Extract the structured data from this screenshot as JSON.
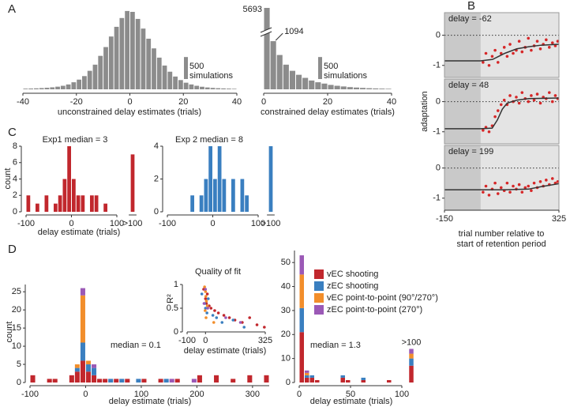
{
  "chart_data": [
    {
      "type": "histogram",
      "panel": "A",
      "xlabel": "unconstrained delay estimates (trials)",
      "bins": [
        -40,
        -38,
        -36,
        -34,
        -32,
        -30,
        -28,
        -26,
        -24,
        -22,
        -20,
        -18,
        -16,
        -14,
        -12,
        -10,
        -8,
        -6,
        -4,
        -2,
        0,
        2,
        4,
        6,
        8,
        10,
        12,
        14,
        16,
        18,
        20,
        22,
        24,
        26,
        28,
        30,
        32,
        34,
        36,
        38,
        40
      ],
      "values": [
        15,
        18,
        22,
        28,
        35,
        45,
        60,
        80,
        110,
        160,
        220,
        300,
        420,
        560,
        760,
        960,
        1200,
        1420,
        1620,
        1780,
        1760,
        1600,
        1380,
        1150,
        930,
        720,
        540,
        400,
        290,
        210,
        150,
        110,
        80,
        58,
        42,
        32,
        25,
        20,
        16,
        12
      ],
      "color": "#8c8c8c",
      "xlim": [
        -40,
        40
      ],
      "xticks": [
        -40,
        -20,
        0,
        20,
        40
      ],
      "ylim": [
        0,
        1850
      ],
      "scale_bar": 500,
      "scale_bar_label": "simulations"
    },
    {
      "type": "histogram",
      "xlabel": "constrained delay estimates (trials)",
      "bins": [
        0,
        2,
        4,
        6,
        8,
        10,
        12,
        14,
        16,
        18,
        20,
        22,
        24,
        26,
        28,
        30,
        32,
        34,
        36,
        38,
        40
      ],
      "values": [
        5693,
        1094,
        780,
        560,
        420,
        330,
        260,
        200,
        160,
        130,
        100,
        80,
        65,
        50,
        40,
        32,
        25,
        20,
        16,
        12
      ],
      "labeled_bars": [
        0,
        1
      ],
      "axis_break": true,
      "color": "#8c8c8c",
      "xlim": [
        0,
        40
      ],
      "xticks": [
        0,
        20,
        40
      ],
      "ylim": [
        0,
        1850
      ],
      "scale_bar": 500,
      "scale_bar_label": "simulations"
    },
    {
      "type": "scatter",
      "panel": "B",
      "title": "delay = -62",
      "retention_start": 0,
      "reference_line": 0,
      "x": [
        10,
        22,
        35,
        48,
        60,
        72,
        85,
        98,
        110,
        122,
        135,
        148,
        160,
        172,
        185,
        198,
        210,
        222,
        235,
        248,
        260,
        272,
        285,
        298,
        310,
        320
      ],
      "y": [
        -0.9,
        -0.6,
        -1.0,
        -0.7,
        -0.5,
        -0.9,
        -0.6,
        -0.4,
        -0.7,
        -0.3,
        -0.6,
        -0.5,
        -0.2,
        -0.55,
        -0.4,
        -0.1,
        -0.5,
        -0.35,
        -0.2,
        -0.45,
        -0.3,
        -0.15,
        -0.4,
        -0.25,
        -0.35,
        -0.2
      ],
      "color": "#d62728",
      "fit": {
        "x": [
          -150,
          0,
          50,
          100,
          150,
          200,
          250,
          325
        ],
        "y": [
          -0.85,
          -0.85,
          -0.8,
          -0.6,
          -0.45,
          -0.38,
          -0.33,
          -0.3
        ]
      },
      "fit_color": "#333333",
      "xlim": [
        -150,
        325
      ],
      "ylim": [
        -1.4,
        0.75
      ],
      "yticks": [
        -1,
        0
      ]
    },
    {
      "type": "scatter",
      "title": "delay = 48",
      "ylabel": "adaptation",
      "retention_start": 0,
      "reference_line": 0,
      "x": [
        10,
        22,
        35,
        48,
        60,
        72,
        85,
        98,
        110,
        122,
        135,
        148,
        160,
        172,
        185,
        198,
        210,
        222,
        235,
        248,
        260,
        272,
        285,
        298,
        310,
        320
      ],
      "y": [
        -0.95,
        -0.85,
        -1.0,
        -0.8,
        -0.5,
        -0.3,
        -0.1,
        0.05,
        -0.1,
        0.2,
        0.0,
        0.15,
        -0.05,
        0.3,
        0.1,
        0.0,
        0.2,
        0.05,
        0.25,
        -0.05,
        0.15,
        0.1,
        0.3,
        0.0,
        0.2,
        0.1
      ],
      "color": "#d62728",
      "fit": {
        "x": [
          -150,
          0,
          48,
          70,
          90,
          110,
          150,
          200,
          325
        ],
        "y": [
          -0.9,
          -0.9,
          -0.88,
          -0.6,
          -0.25,
          -0.05,
          0.05,
          0.1,
          0.12
        ]
      },
      "fit_color": "#333333",
      "xlim": [
        -150,
        325
      ],
      "ylim": [
        -1.4,
        0.75
      ],
      "yticks": [
        -1,
        0
      ]
    },
    {
      "type": "scatter",
      "title": "delay = 199",
      "xlabel": [
        "trial number relative to",
        "start of retention period"
      ],
      "retention_start": 0,
      "reference_line": 0,
      "x": [
        10,
        22,
        35,
        48,
        60,
        72,
        85,
        98,
        110,
        122,
        135,
        148,
        160,
        172,
        185,
        198,
        210,
        222,
        235,
        248,
        260,
        272,
        285,
        298,
        310,
        320
      ],
      "y": [
        -0.8,
        -0.6,
        -0.9,
        -0.7,
        -0.5,
        -0.85,
        -0.65,
        -0.75,
        -0.5,
        -0.8,
        -0.6,
        -0.7,
        -0.55,
        -0.8,
        -0.65,
        -0.6,
        -0.75,
        -0.5,
        -0.65,
        -0.45,
        -0.6,
        -0.4,
        -0.55,
        -0.35,
        -0.5,
        -0.45
      ],
      "color": "#d62728",
      "fit": {
        "x": [
          -150,
          0,
          100,
          199,
          250,
          325
        ],
        "y": [
          -0.72,
          -0.72,
          -0.72,
          -0.7,
          -0.62,
          -0.52
        ]
      },
      "fit_color": "#333333",
      "xlim": [
        -150,
        325
      ],
      "xticks": [
        -150,
        325
      ],
      "ylim": [
        -1.4,
        0.75
      ],
      "yticks": [
        -1,
        0
      ]
    },
    {
      "type": "histogram",
      "panel": "C",
      "title": "Exp1 median = 3",
      "xlabel": "delay estimate (trials)",
      "ylabel": "count",
      "bins": [
        -100,
        -90,
        -80,
        -70,
        -60,
        -50,
        -40,
        -30,
        -20,
        -10,
        0,
        10,
        20,
        30,
        40,
        50,
        60,
        70,
        80,
        90,
        100
      ],
      "values": [
        2,
        0,
        1,
        0,
        2,
        0,
        1,
        2,
        4,
        8,
        4,
        2,
        2,
        0,
        2,
        2,
        0,
        1,
        0,
        0
      ],
      "overflow": 7,
      "overflow_label": ">100",
      "color": "#c1272d",
      "xlim": [
        -100,
        100
      ],
      "xticks": [
        -100,
        0,
        100
      ],
      "ylim": [
        0,
        8
      ],
      "yticks": [
        0,
        2,
        4,
        6,
        8
      ]
    },
    {
      "type": "histogram",
      "title": "Exp 2 median = 8",
      "bins": [
        -100,
        -90,
        -80,
        -70,
        -60,
        -50,
        -40,
        -30,
        -20,
        -10,
        0,
        10,
        20,
        30,
        40,
        50,
        60,
        70,
        80,
        90,
        100
      ],
      "values": [
        0,
        0,
        0,
        0,
        0,
        1,
        0,
        1,
        2,
        4,
        2,
        4,
        2,
        0,
        2,
        0,
        2,
        1,
        0,
        0
      ],
      "overflow": 4,
      "overflow_label": ">100",
      "color": "#3a7fc0",
      "xlim": [
        -100,
        100
      ],
      "xticks": [
        -100,
        0,
        100
      ],
      "ylim": [
        0,
        4
      ],
      "yticks": [
        0,
        2,
        4
      ]
    },
    {
      "type": "histogram",
      "panel": "D",
      "xlabel": "delay estimate (trials)",
      "ylabel": "count",
      "annotation": "median = 0.1",
      "legend": "upper right",
      "bins": [
        -100,
        -90,
        -80,
        -70,
        -60,
        -50,
        -40,
        -30,
        -20,
        -10,
        0,
        10,
        20,
        30,
        40,
        50,
        60,
        70,
        80,
        90,
        100,
        110,
        120,
        130,
        140,
        150,
        160,
        170,
        180,
        190,
        200,
        210,
        220,
        230,
        240,
        250,
        260,
        270,
        280,
        290,
        300,
        310,
        320,
        330
      ],
      "series": [
        {
          "name": "vEC shooting",
          "color": "#c1272d",
          "values": [
            2,
            0,
            0,
            1,
            1,
            0,
            0,
            2,
            3,
            6,
            3,
            2,
            1,
            1,
            0,
            1,
            0,
            1,
            0,
            0,
            1,
            0,
            0,
            1,
            0,
            0,
            1,
            0,
            0,
            0,
            2,
            0,
            0,
            2,
            0,
            0,
            1,
            0,
            0,
            2,
            0,
            0,
            2
          ]
        },
        {
          "name": "zEC shooting",
          "color": "#3a7fc0",
          "values": [
            0,
            0,
            0,
            0,
            0,
            0,
            0,
            0,
            1,
            5,
            2,
            2,
            0,
            0,
            1,
            0,
            1,
            0,
            0,
            1,
            0,
            0,
            0,
            0,
            1,
            0,
            0,
            0,
            0,
            0,
            0,
            0,
            0,
            0,
            0,
            0,
            0,
            0,
            0,
            0,
            0,
            0,
            0
          ]
        },
        {
          "name": "vEC point-to-point (90°/270°)",
          "color": "#f28e2b",
          "values": [
            0,
            0,
            0,
            0,
            0,
            0,
            0,
            0,
            1,
            13,
            1,
            0,
            0,
            0,
            0,
            0,
            0,
            0,
            0,
            0,
            0,
            0,
            0,
            0,
            0,
            0,
            0,
            0,
            0,
            0,
            0,
            0,
            0,
            0,
            0,
            0,
            0,
            0,
            0,
            0,
            0,
            0,
            0
          ]
        },
        {
          "name": "zEC point-to-point (270°)",
          "color": "#9b59b6",
          "values": [
            0,
            0,
            0,
            0,
            0,
            0,
            0,
            0,
            0,
            2,
            0,
            1,
            0,
            0,
            0,
            0,
            0,
            0,
            0,
            0,
            0,
            0,
            0,
            0,
            0,
            1,
            0,
            0,
            0,
            1,
            0,
            0,
            0,
            0,
            0,
            0,
            0,
            0,
            0,
            0,
            0,
            0,
            0
          ]
        }
      ],
      "xlim": [
        -100,
        330
      ],
      "xticks": [
        -100,
        0,
        100,
        200,
        300
      ],
      "ylim": [
        0,
        27
      ],
      "yticks": [
        0,
        5,
        10,
        15,
        20,
        25
      ]
    },
    {
      "type": "scatter",
      "title": "Quality of fit",
      "ylabel": "R²",
      "xlabel": "delay estimate (trials)",
      "series": [
        {
          "color": "#c1272d",
          "x": [
            -10,
            0,
            5,
            10,
            20,
            30,
            50,
            70,
            100,
            130,
            160,
            200,
            240,
            280,
            320
          ],
          "y": [
            0.9,
            0.7,
            0.6,
            0.8,
            0.55,
            0.5,
            0.45,
            0.4,
            0.35,
            0.3,
            0.25,
            0.2,
            0.3,
            0.15,
            0.1
          ]
        },
        {
          "color": "#3a7fc0",
          "x": [
            -20,
            -5,
            0,
            8,
            15,
            40,
            60,
            90,
            150,
            210
          ],
          "y": [
            0.8,
            0.6,
            0.5,
            0.4,
            0.7,
            0.35,
            0.3,
            0.2,
            0.25,
            0.1
          ]
        },
        {
          "color": "#f28e2b",
          "x": [
            -5,
            0,
            2,
            5,
            10,
            -2,
            3,
            45
          ],
          "y": [
            0.95,
            0.85,
            0.75,
            0.65,
            0.55,
            0.45,
            0.3,
            0.2
          ]
        },
        {
          "color": "#9b59b6",
          "x": [
            -8,
            0,
            12,
            110,
            190
          ],
          "y": [
            0.6,
            0.9,
            0.5,
            0.3,
            0.2
          ]
        }
      ],
      "xlim": [
        -100,
        325
      ],
      "xticks": [
        -100,
        0,
        325
      ],
      "ylim": [
        0,
        1
      ],
      "yticks": [
        0,
        0.5,
        1
      ]
    },
    {
      "type": "histogram",
      "xlabel": "delay estimate (trials)",
      "annotation": "median = 1.3",
      "overflow_label": ">100",
      "bins": [
        0,
        5,
        10,
        15,
        20,
        25,
        30,
        35,
        40,
        45,
        50,
        55,
        60,
        65,
        70,
        75,
        80,
        85,
        90,
        95,
        100
      ],
      "series": [
        {
          "color": "#c1272d",
          "values": [
            21,
            2,
            2,
            1,
            0,
            0,
            0,
            0,
            2,
            1,
            0,
            0,
            1,
            0,
            0,
            0,
            0,
            1,
            0,
            0
          ],
          "overflow": 7
        },
        {
          "color": "#3a7fc0",
          "values": [
            10,
            1,
            1,
            0,
            0,
            0,
            0,
            0,
            1,
            0,
            0,
            0,
            1,
            0,
            0,
            0,
            0,
            0,
            0,
            0
          ],
          "overflow": 3
        },
        {
          "color": "#f28e2b",
          "values": [
            14,
            1,
            0,
            0,
            0,
            0,
            0,
            0,
            0,
            0,
            0,
            0,
            0,
            0,
            0,
            0,
            0,
            0,
            0,
            0
          ],
          "overflow": 2
        },
        {
          "color": "#9b59b6",
          "values": [
            8,
            1,
            0,
            0,
            0,
            0,
            0,
            0,
            0,
            0,
            0,
            0,
            0,
            0,
            0,
            0,
            0,
            0,
            0,
            0
          ],
          "overflow": 2
        }
      ],
      "xlim": [
        0,
        100
      ],
      "xticks": [
        0,
        50,
        100
      ],
      "ylim": [
        0,
        55
      ],
      "yticks": [
        0,
        10,
        20,
        30,
        40,
        50
      ]
    }
  ]
}
